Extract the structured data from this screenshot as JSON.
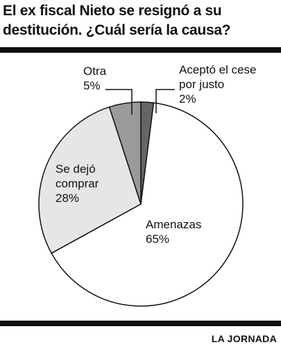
{
  "chart_data": {
    "type": "pie",
    "title": "El ex fiscal Nieto se resignó a su destitución. ¿Cuál sería la causa?",
    "categories": [
      "Aceptó el cese por justo",
      "Amenazas",
      "Se dejó comprar",
      "Otra"
    ],
    "values": [
      2,
      65,
      28,
      5
    ],
    "value_labels": [
      "2%",
      "65%",
      "28%",
      "5%"
    ],
    "colors": [
      "#666666",
      "#ffffff",
      "#e6e6e6",
      "#9a9a9a"
    ],
    "source": "LA JORNADA"
  }
}
